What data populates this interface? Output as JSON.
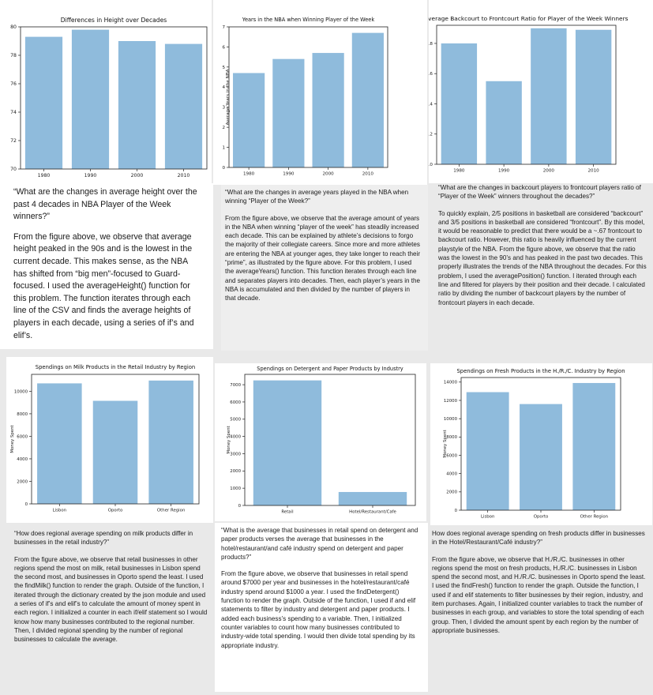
{
  "colors": {
    "bar": "#8fbbdc",
    "text": "#111111",
    "page": "#e9e9e9"
  },
  "charts": [
    {
      "id": "height",
      "chart_data": {
        "type": "bar",
        "title": "Differences in Height over Decades",
        "xlabel": "",
        "ylabel": "",
        "categories": [
          "1980",
          "1990",
          "2000",
          "2010"
        ],
        "values": [
          79.3,
          79.8,
          79.0,
          78.8
        ],
        "ylim": [
          70,
          80
        ],
        "yticks": [
          70,
          72,
          74,
          76,
          78,
          80
        ],
        "grid": false
      }
    },
    {
      "id": "years",
      "chart_data": {
        "type": "bar",
        "title": "Years in the NBA when Winning Player of the Week",
        "xlabel": "",
        "ylabel": "Average Years in the NBA",
        "categories": [
          "1980",
          "1990",
          "2000",
          "2010"
        ],
        "values": [
          4.7,
          5.4,
          5.7,
          6.7
        ],
        "ylim": [
          0,
          7
        ],
        "yticks": [
          0,
          1,
          2,
          3,
          4,
          5,
          6,
          7
        ],
        "grid": false
      }
    },
    {
      "id": "ratio",
      "chart_data": {
        "type": "bar",
        "title": "Average Backcourt to Frontcourt Ratio for Player of the Week Winners",
        "xlabel": "",
        "ylabel": "Backcourt to Frontcourt Ratio",
        "categories": [
          "1980",
          "1990",
          "2000",
          "2010"
        ],
        "values": [
          0.8,
          0.55,
          0.9,
          0.89
        ],
        "ylim": [
          0,
          0.92
        ],
        "yticks": [
          0.0,
          0.2,
          0.4,
          0.6,
          0.8
        ],
        "ytick_decimals": 1,
        "grid": false
      }
    },
    {
      "id": "milk",
      "chart_data": {
        "type": "bar",
        "title": "Spendings on Milk Products in the Retail Industry by Region",
        "xlabel": "",
        "ylabel": "Money Spent",
        "categories": [
          "Lisbon",
          "Oporto",
          "Other Region"
        ],
        "values": [
          10700,
          9150,
          10950
        ],
        "ylim": [
          0,
          11500
        ],
        "yticks": [
          0,
          2000,
          4000,
          6000,
          8000,
          10000
        ],
        "grid": false
      }
    },
    {
      "id": "detergent",
      "chart_data": {
        "type": "bar",
        "title": "Spendings on Detergent and Paper Products by Industry",
        "xlabel": "",
        "ylabel": "Money Spent",
        "categories": [
          "Retail",
          "Hotel/Restaurant/Cafe"
        ],
        "values": [
          7250,
          780
        ],
        "ylim": [
          0,
          7600
        ],
        "yticks": [
          0,
          1000,
          2000,
          3000,
          4000,
          5000,
          6000,
          7000
        ],
        "grid": false
      }
    },
    {
      "id": "fresh",
      "chart_data": {
        "type": "bar",
        "title": "Spendings on Fresh Products in the H./R./C. Industry by Region",
        "xlabel": "",
        "ylabel": "Money Spent",
        "categories": [
          "Lisbon",
          "Oporto",
          "Other Region"
        ],
        "values": [
          12900,
          11600,
          13900
        ],
        "ylim": [
          0,
          14500
        ],
        "yticks": [
          0,
          2000,
          4000,
          6000,
          8000,
          10000,
          12000,
          14000
        ],
        "grid": false
      }
    }
  ],
  "texts": {
    "height": {
      "question": "“What are the changes in average height over the past 4 decades in NBA Player of the Week winners?”",
      "body": "From the figure above, we observe that average height peaked in the 90s and is the lowest in the current decade. This makes sense, as the NBA has shifted from “big men”-focused to Guard-focused. I used the averageHeight() function for this problem. The function iterates through each line of the CSV and finds the average heights of players in each decade, using a series of if’s and elif’s."
    },
    "years": {
      "question": "“What are the changes in average years played in the NBA when winning “Player of the Week?”",
      "body": "From the figure above, we observe that the average amount of years in the NBA when winning “player of the week” has steadily increased each decade. This can be explained by athlete’s decisions to forgo the majority of their collegiate careers. Since more and more athletes are entering the NBA at younger ages, they take longer to reach their “prime”, as illustrated by the figure above. For this problem, I used the averageYears() function. This function iterates through each line and separates players into decades. Then, each player’s years in the NBA is accumulated and then divided by the number of players in that decade."
    },
    "ratio": {
      "question": "“What are the changes in backcourt players to frontcourt players ratio of “Player of the Week” winners throughout the decades?”",
      "body": "To quickly explain, 2/5 positions in basketball are considered “backcourt” and 3/5 positions in basketball are considered “frontcourt”. By this model, it would be reasonable to predict that there would be a ~.67 frontcourt to backcourt ratio. However, this ratio is heavily influenced by the current playstyle of the NBA. From the figure above, we observe that the ratio was the lowest in the 90’s and has peaked in the past two decades. This properly illustrates the trends of the NBA throughout the decades. For this problem, I used the averagePosition() function. I iterated through each line and filtered for players by their position and their decade. I calculated ratio by dividing the number of backcourt players by the number of  frontcourt players in each decade."
    },
    "milk": {
      "question": "“How does regional average spending on milk products differ in businesses in the retail industry?”",
      "body": "From the figure above, we observe that retail businesses in other regions spend the most on milk, retail businesses in Lisbon spend the second most, and businesses in Oporto spend the least. I used the findMilk() function to render the graph. Outside of the function, I iterated through the dictionary created by the json module and used a series of if’s and elif’s to calculate the amount of money spent in each region. I initialized a counter in each if/elif statement so I would know how many businesses contributed to the regional number. Then, I divided regional spending by the number of regional businesses to calculate the average."
    },
    "detergent": {
      "question": "“What is the average that businesses in retail spend on detergent and paper products verses the average that businesses in the hotel/restaurant/and café industry spend on detergent and paper products?”",
      "body": "From the figure above, we observe that businesses in retail spend around $7000 per year and businesses in the hotel/restaurant/café industry spend around $1000 a year. I used the findDetergent() function to render the graph. Outside of the function, I used if and elif statements to filter by industry and detergent and paper products. I added each business’s spending to a variable. Then, I initialized  counter variables to count how many businesses contributed to industry-wide total spending. I would then divide total spending by its appropriate industry."
    },
    "fresh": {
      "question": "How does regional average spending on fresh products differ in businesses in the Hotel/Restaurant/Café industry?”",
      "body": "From the figure above, we observe that H./R./C. businesses in other regions spend the most on fresh products, H./R./C. businesses in Lisbon spend the second most, and H./R./C. businesses in Oporto spend the least. I used the findFresh() function to render the graph.  Outside the function, I used if and elif statements to filter businesses by their region, industry, and item purchases. Again, I initialized  counter variables to track the number of businesses in each group, and variables to store the total spending of each group. Then, I divided the amount spent by each region by the number of appropriate businesses."
    }
  }
}
